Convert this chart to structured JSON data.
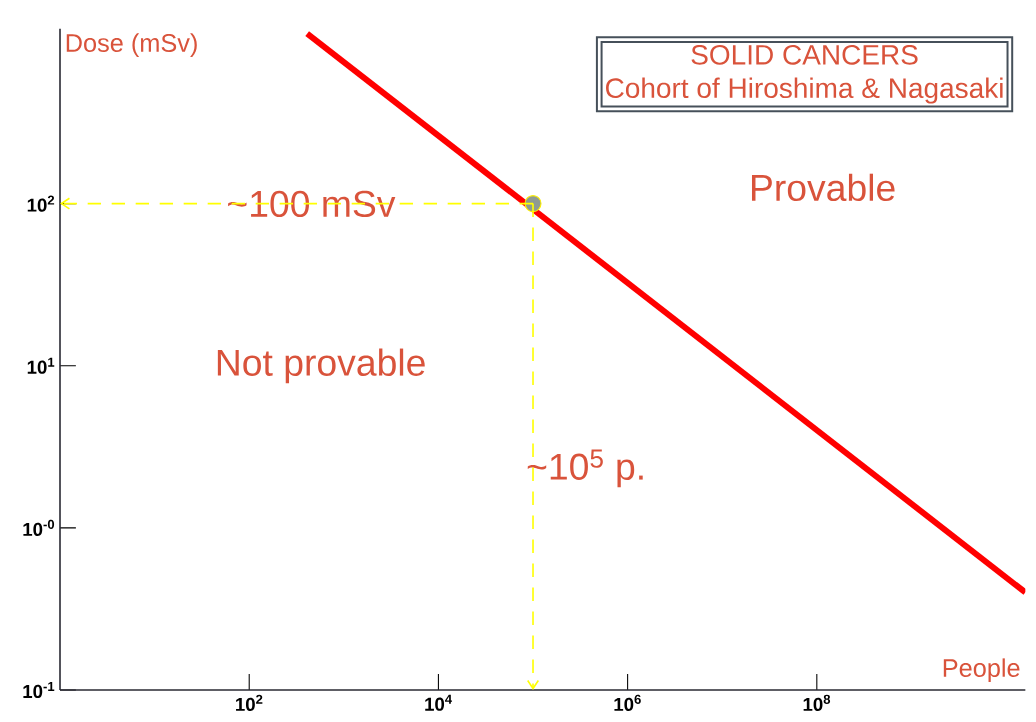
{
  "chart_data": {
    "type": "line",
    "title": "SOLID CANCERS",
    "subtitle": "Cohort of Hiroshima & Nagasaki",
    "xlabel": "People",
    "ylabel": "Dose (mSv)",
    "annotations": [
      "~100 mSv",
      "~10$^{5}$ p.",
      "Provable",
      "Not provable"
    ],
    "series": [
      {
        "type": "line",
        "color": "#ff0000",
        "x": [
          410,
          16000000000
        ],
        "values": [
          1120,
          0.4
        ]
      },
      {
        "type": "scatter",
        "color": "#8e9a92",
        "marker": "circle",
        "x": [
          100000
        ],
        "values": [
          100
        ]
      }
    ],
    "log": "xy",
    "xlim": [
      1,
      16000000000
    ],
    "ylim": [
      0.1,
      1200
    ],
    "xticks": [
      {
        "value": 100,
        "label": "10$^{2}$"
      },
      {
        "value": 10000,
        "label": "10$^{4}$"
      },
      {
        "value": 1000000,
        "label": "10$^{6}$"
      },
      {
        "value": 100000000,
        "label": "10$^{8}$"
      }
    ],
    "yticks": [
      {
        "value": 0.1,
        "label": "10$^{-1}$"
      },
      {
        "value": 1,
        "label": "10$^{-0}$"
      },
      {
        "value": 10,
        "label": "10$^{1}$"
      },
      {
        "value": 100,
        "label": "10$^{2}$"
      }
    ],
    "ref_lines": [
      {
        "axis": "y",
        "value": 100,
        "color": "#ffff00",
        "line_style": "dashed"
      },
      {
        "axis": "x",
        "value": 100000,
        "color": "#ffff00",
        "line_style": "dashed"
      }
    ],
    "grid": false,
    "marker": "none",
    "line_style": "solid"
  }
}
